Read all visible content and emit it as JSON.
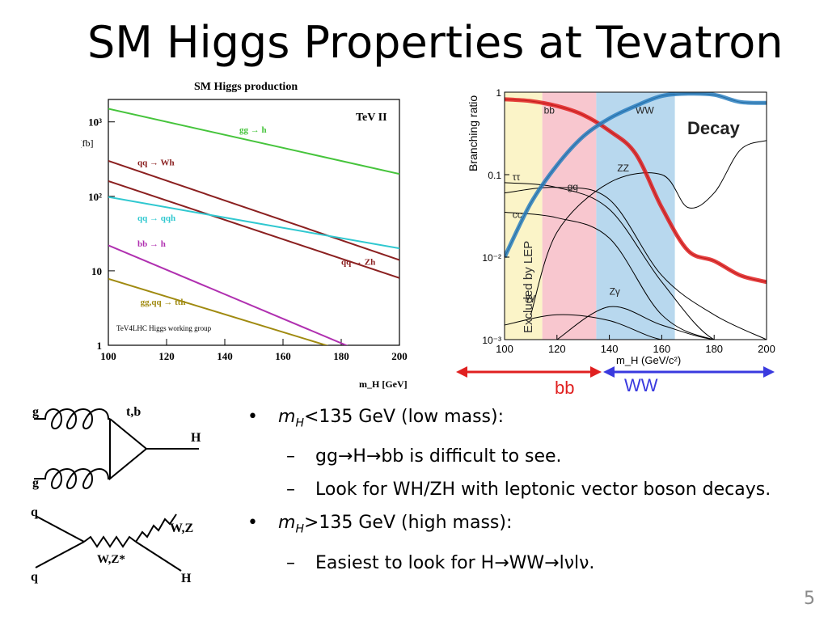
{
  "slide": {
    "title": "SM Higgs Properties at Tevatron",
    "page_number": "5"
  },
  "range_labels": {
    "low": "bb",
    "high": "WW",
    "low_color": "#e02020",
    "high_color": "#3a3adf"
  },
  "bullets": [
    {
      "level": 1,
      "prefix": "m",
      "sub": "H",
      "text": "<135 GeV (low mass):"
    },
    {
      "level": 2,
      "text": "gg→H→bb is difficult to see."
    },
    {
      "level": 2,
      "text": "Look for WH/ZH with leptonic vector boson decays."
    },
    {
      "level": 1,
      "prefix": "m",
      "sub": "H",
      "text": ">135 GeV (high mass):"
    },
    {
      "level": 2,
      "text": "Easiest to look for H→WW→lνlν."
    }
  ],
  "diagrams": {
    "ggh": {
      "g_top": "g",
      "g_bottom": "g",
      "quark": "t,b",
      "higgs": "H"
    },
    "vh": {
      "q_top": "q",
      "q_bottom": "q",
      "boson_out": "W,Z",
      "boson_mid": "W,Z*",
      "higgs": "H"
    }
  },
  "chart_data": [
    {
      "type": "line",
      "title": "SM Higgs production",
      "annotation": "TeV II",
      "credit": "TeV4LHC Higgs working group",
      "xlabel": "m_H [GeV]",
      "ylabel": "σ [fb]",
      "xlim": [
        100,
        200
      ],
      "ylim": [
        1,
        2000
      ],
      "log_y": true,
      "x_ticks": [
        "100",
        "120",
        "140",
        "160",
        "180",
        "200"
      ],
      "y_ticks": [
        {
          "value": 1,
          "label": "1"
        },
        {
          "value": 10,
          "label": "10"
        },
        {
          "value": 100,
          "label": "10²"
        },
        {
          "value": 1000,
          "label": "10³"
        }
      ],
      "series": [
        {
          "name": "gg → h",
          "color": "#46c43c",
          "x": [
            100,
            200
          ],
          "y": [
            1500,
            200
          ],
          "label_x": 145,
          "label_y": 720
        },
        {
          "name": "qq → Wh",
          "color": "#8b2020",
          "x": [
            100,
            200
          ],
          "y": [
            300,
            14
          ],
          "label_x": 110,
          "label_y": 260
        },
        {
          "name": "qq → Zh",
          "color": "#8b2020",
          "x": [
            100,
            200
          ],
          "y": [
            160,
            8
          ],
          "label_x": 180,
          "label_y": 12
        },
        {
          "name": "qq → qqh",
          "color": "#30c8d0",
          "x": [
            100,
            200
          ],
          "y": [
            98,
            20
          ],
          "label_x": 110,
          "label_y": 47
        },
        {
          "name": "bb → h",
          "color": "#b030b0",
          "x": [
            100,
            200
          ],
          "y": [
            22,
            0.5
          ],
          "label_x": 110,
          "label_y": 21
        },
        {
          "name": "gg,qq → tth",
          "color": "#a08a10",
          "x": [
            100,
            200
          ],
          "y": [
            7.8,
            0.5
          ],
          "label_x": 111,
          "label_y": 3.5
        }
      ]
    },
    {
      "type": "line",
      "title": "Decay",
      "xlabel": "m_H (GeV/c²)",
      "ylabel": "Branching ratio",
      "xlim": [
        100,
        200
      ],
      "ylim": [
        0.001,
        1
      ],
      "log_y": true,
      "x_ticks": [
        "100",
        "120",
        "140",
        "160",
        "180",
        "200"
      ],
      "y_ticks": [
        {
          "value": 1,
          "label": "1"
        },
        {
          "value": 0.1,
          "label": "0.1"
        },
        {
          "value": 0.01,
          "label": "10⁻²"
        },
        {
          "value": 0.001,
          "label": "10⁻³"
        }
      ],
      "excluded_label": "Excluded by LEP",
      "bands": [
        {
          "from": 100,
          "to": 114.4,
          "color": "#fbf4c8"
        },
        {
          "from": 114.4,
          "to": 135,
          "color": "#f8c7cf"
        },
        {
          "from": 135,
          "to": 165,
          "color": "#b8d8ee"
        }
      ],
      "series": [
        {
          "name": "bb̄",
          "color": "#000000",
          "x": [
            100,
            110,
            120,
            130,
            140,
            150,
            160,
            170,
            180,
            190,
            200
          ],
          "y": [
            0.82,
            0.78,
            0.68,
            0.53,
            0.34,
            0.18,
            0.04,
            0.012,
            0.009,
            0.006,
            0.005
          ],
          "label_x": 115,
          "label_y": 0.55
        },
        {
          "name": "WW",
          "color": "#000000",
          "x": [
            100,
            110,
            120,
            130,
            140,
            150,
            160,
            170,
            180,
            190,
            200
          ],
          "y": [
            0.01,
            0.045,
            0.13,
            0.29,
            0.48,
            0.68,
            0.9,
            0.96,
            0.93,
            0.76,
            0.74
          ],
          "label_x": 150,
          "label_y": 0.55
        },
        {
          "name": "ττ",
          "color": "#000000",
          "x": [
            100,
            120,
            140,
            160,
            180,
            200
          ],
          "y": [
            0.08,
            0.07,
            0.038,
            0.005,
            0.001,
            0.001
          ],
          "label_x": 103,
          "label_y": 0.085
        },
        {
          "name": "gg",
          "color": "#000000",
          "x": [
            100,
            120,
            140,
            160,
            180,
            200
          ],
          "y": [
            0.06,
            0.07,
            0.05,
            0.006,
            0.002,
            0.001
          ],
          "label_x": 124,
          "label_y": 0.065
        },
        {
          "name": "cc",
          "color": "#000000",
          "x": [
            100,
            120,
            140,
            160,
            180,
            200
          ],
          "y": [
            0.035,
            0.03,
            0.017,
            0.002,
            0.001,
            0.001
          ],
          "label_x": 103,
          "label_y": 0.03
        },
        {
          "name": "ZZ",
          "color": "#000000",
          "x": [
            110,
            120,
            140,
            160,
            170,
            180,
            190,
            200
          ],
          "y": [
            0.002,
            0.02,
            0.08,
            0.1,
            0.04,
            0.06,
            0.2,
            0.26
          ],
          "label_x": 143,
          "label_y": 0.11
        },
        {
          "name": "γγ",
          "color": "#000000",
          "x": [
            100,
            120,
            140,
            160,
            180,
            200
          ],
          "y": [
            0.0015,
            0.002,
            0.0017,
            0.001,
            0.001,
            0.001
          ],
          "label_x": 108,
          "label_y": 0.003
        },
        {
          "name": "Zγ",
          "color": "#000000",
          "x": [
            120,
            140,
            160,
            180,
            200
          ],
          "y": [
            0.001,
            0.0025,
            0.0015,
            0.001,
            0.001
          ],
          "label_x": 140,
          "label_y": 0.0035
        }
      ]
    }
  ]
}
